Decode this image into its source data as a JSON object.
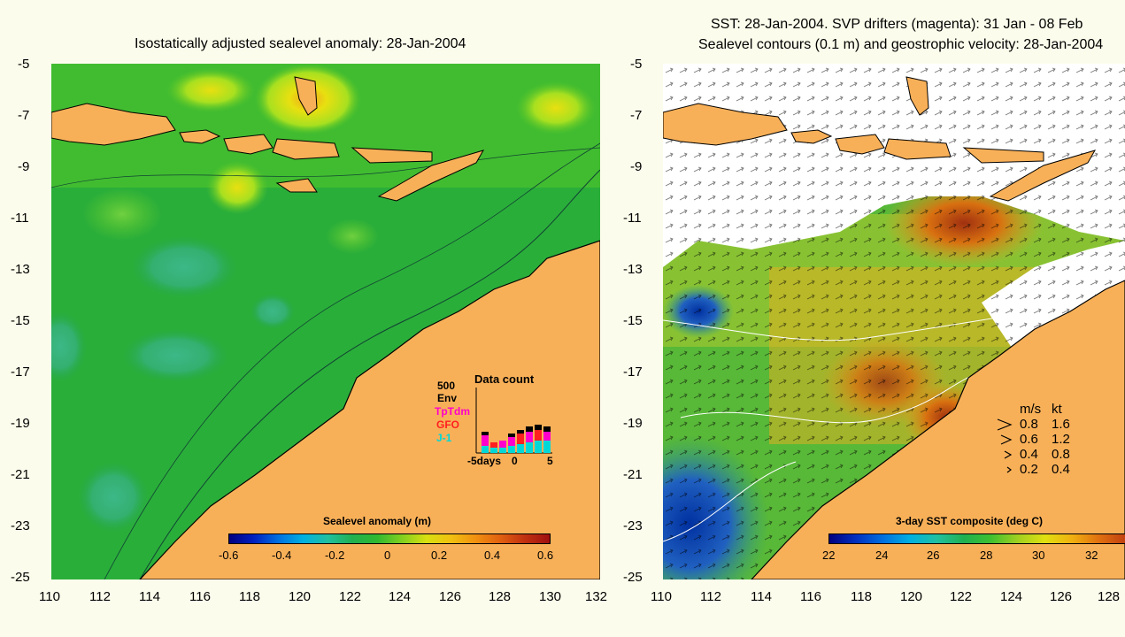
{
  "left_panel": {
    "title": "Isostatically adjusted sealevel anomaly: 28-Jan-2004",
    "lat_ticks": [
      "-5",
      "-7",
      "-9",
      "-11",
      "-13",
      "-15",
      "-17",
      "-19",
      "-21",
      "-23",
      "-25"
    ],
    "lon_ticks": [
      "110",
      "112",
      "114",
      "116",
      "118",
      "120",
      "122",
      "124",
      "126",
      "128",
      "130",
      "132"
    ],
    "colorbar": {
      "title": "Sealevel anomaly (m)",
      "labels": [
        "-0.6",
        "-0.4",
        "-0.2",
        "0",
        "0.2",
        "0.4",
        "0.6"
      ]
    },
    "data_count": {
      "title": "Data count",
      "scale_label": "500",
      "missions": [
        "Env",
        "TpTdm",
        "GFO",
        "J-1"
      ],
      "axis_labels": [
        "-5days",
        "0",
        "5"
      ]
    }
  },
  "right_panel": {
    "title_line1": "SST: 28-Jan-2004. SVP drifters (magenta): 31 Jan - 08 Feb",
    "title_line2": "Sealevel contours (0.1 m) and geostrophic velocity: 28-Jan-2004",
    "lat_ticks": [
      "-5",
      "-7",
      "-9",
      "-11",
      "-13",
      "-15",
      "-17",
      "-19",
      "-21",
      "-23",
      "-25"
    ],
    "lon_ticks": [
      "110",
      "112",
      "114",
      "116",
      "118",
      "120",
      "122",
      "124",
      "126",
      "128"
    ],
    "velocity_legend": {
      "header_ms": "m/s",
      "header_kt": "kt",
      "rows": [
        {
          "ms": "0.8",
          "kt": "1.6"
        },
        {
          "ms": "0.6",
          "kt": "1.2"
        },
        {
          "ms": "0.4",
          "kt": "0.8"
        },
        {
          "ms": "0.2",
          "kt": "0.4"
        }
      ]
    },
    "colorbar": {
      "title": "3-day SST composite (deg C)",
      "labels": [
        "22",
        "24",
        "26",
        "28",
        "30",
        "32"
      ]
    }
  },
  "colors": {
    "background": "#fcfcec",
    "land": "#f8b058",
    "ocean_sla": "#22bb22",
    "env": "#000000",
    "tptdm": "#ff00cc",
    "gfo": "#ff2020",
    "j1": "#00d8d8"
  }
}
